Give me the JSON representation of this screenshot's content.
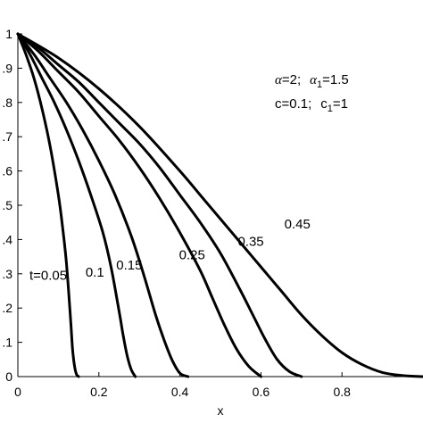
{
  "chart_data": {
    "type": "line",
    "xlabel": "x",
    "ylabel": "",
    "xlim": [
      0,
      1
    ],
    "ylim": [
      0,
      1
    ],
    "x_ticks": [
      "0",
      "0.2",
      "0.4",
      "0.6",
      "0.8"
    ],
    "y_ticks": [
      "0",
      ".1",
      ".2",
      ".3",
      ".4",
      ".5",
      ".6",
      ".7",
      ".8",
      ".9",
      "1"
    ],
    "line_color": "#000000",
    "parameters": {
      "line1": {
        "alpha_sym": "α",
        "alpha_val": "=2;",
        "alpha1_sym": "α",
        "alpha1_sub": "1",
        "alpha1_val": "=1.5"
      },
      "line2": {
        "c_text": "c=0.1;",
        "c1_sym": "c",
        "c1_sub": "1",
        "c1_val": "=1"
      }
    },
    "series": [
      {
        "name": "t=0.05",
        "x": [
          0,
          0.02,
          0.04,
          0.06,
          0.08,
          0.1,
          0.11,
          0.12,
          0.13,
          0.135,
          0.14,
          0.145,
          0.15
        ],
        "y": [
          1,
          0.94,
          0.87,
          0.78,
          0.67,
          0.53,
          0.44,
          0.33,
          0.17,
          0.08,
          0.03,
          0.006,
          0
        ]
      },
      {
        "name": "0.1",
        "x": [
          0,
          0.03,
          0.06,
          0.09,
          0.12,
          0.15,
          0.18,
          0.21,
          0.23,
          0.25,
          0.26,
          0.27,
          0.28,
          0.29
        ],
        "y": [
          1,
          0.94,
          0.87,
          0.8,
          0.72,
          0.63,
          0.53,
          0.42,
          0.32,
          0.19,
          0.12,
          0.06,
          0.02,
          0
        ]
      },
      {
        "name": "0.15",
        "x": [
          0,
          0.04,
          0.08,
          0.12,
          0.16,
          0.2,
          0.24,
          0.28,
          0.31,
          0.34,
          0.36,
          0.38,
          0.4,
          0.42
        ],
        "y": [
          1,
          0.94,
          0.87,
          0.8,
          0.72,
          0.63,
          0.53,
          0.41,
          0.3,
          0.18,
          0.11,
          0.05,
          0.01,
          0
        ]
      },
      {
        "name": "0.25",
        "x": [
          0,
          0.05,
          0.1,
          0.15,
          0.2,
          0.25,
          0.3,
          0.35,
          0.4,
          0.45,
          0.48,
          0.51,
          0.54,
          0.57,
          0.6
        ],
        "y": [
          1,
          0.95,
          0.89,
          0.83,
          0.76,
          0.69,
          0.61,
          0.52,
          0.42,
          0.31,
          0.23,
          0.15,
          0.08,
          0.03,
          0
        ]
      },
      {
        "name": "0.35",
        "x": [
          0,
          0.05,
          0.1,
          0.15,
          0.2,
          0.25,
          0.3,
          0.35,
          0.4,
          0.45,
          0.5,
          0.55,
          0.58,
          0.61,
          0.64,
          0.67,
          0.7
        ],
        "y": [
          1,
          0.96,
          0.91,
          0.86,
          0.8,
          0.74,
          0.68,
          0.61,
          0.53,
          0.45,
          0.36,
          0.25,
          0.18,
          0.11,
          0.05,
          0.015,
          0
        ]
      },
      {
        "name": "0.45",
        "x": [
          0,
          0.1,
          0.2,
          0.3,
          0.4,
          0.45,
          0.5,
          0.55,
          0.6,
          0.65,
          0.7,
          0.75,
          0.8,
          0.85,
          0.9,
          0.95,
          1.0
        ],
        "y": [
          1,
          0.93,
          0.84,
          0.73,
          0.6,
          0.53,
          0.46,
          0.39,
          0.32,
          0.25,
          0.18,
          0.12,
          0.07,
          0.035,
          0.012,
          0.003,
          0
        ]
      }
    ],
    "curve_labels": [
      {
        "text": "t=0.05",
        "x": 0.075,
        "y": 0.295
      },
      {
        "text": "0.1",
        "x": 0.19,
        "y": 0.305
      },
      {
        "text": "0.15",
        "x": 0.275,
        "y": 0.325
      },
      {
        "text": "0.25",
        "x": 0.43,
        "y": 0.355
      },
      {
        "text": "0.35",
        "x": 0.575,
        "y": 0.395
      },
      {
        "text": "0.45",
        "x": 0.69,
        "y": 0.445
      }
    ]
  }
}
